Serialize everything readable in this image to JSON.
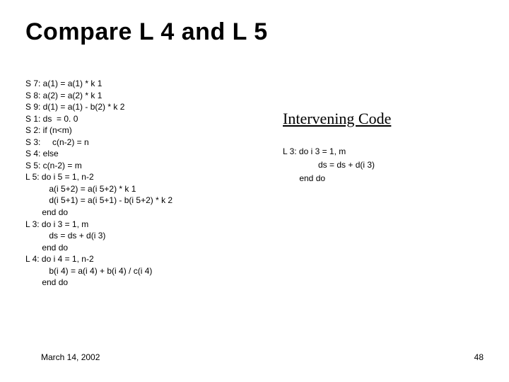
{
  "title": "Compare L 4 and L 5",
  "code_lines": "S 7: a(1) = a(1) * k 1\nS 8: a(2) = a(2) * k 1\nS 9: d(1) = a(1) - b(2) * k 2\nS 1: ds  = 0. 0\nS 2: if (n<m)\nS 3:     c(n-2) = n\nS 4: else\nS 5: c(n-2) = m\nL 5: do i 5 = 1, n-2\n          a(i 5+2) = a(i 5+2) * k 1\n          d(i 5+1) = a(i 5+1) - b(i 5+2) * k 2\n       end do\nL 3: do i 3 = 1, m\n          ds = ds + d(i 3)\n       end do\nL 4: do i 4 = 1, n-2\n          b(i 4) = a(i 4) + b(i 4) / c(i 4)\n       end do",
  "intervening": {
    "heading": "Intervening Code",
    "code": "L 3: do i 3 = 1, m\n               ds = ds + d(i 3)\n       end do"
  },
  "footer": {
    "date": "March 14, 2002",
    "page": "48"
  },
  "colors": {
    "background": "#ffffff",
    "text": "#000000"
  },
  "fonts": {
    "title_family": "Arial Black",
    "title_size_pt": 26,
    "body_size_pt": 9,
    "intervening_heading_family": "Times New Roman",
    "intervening_heading_size_pt": 17
  }
}
